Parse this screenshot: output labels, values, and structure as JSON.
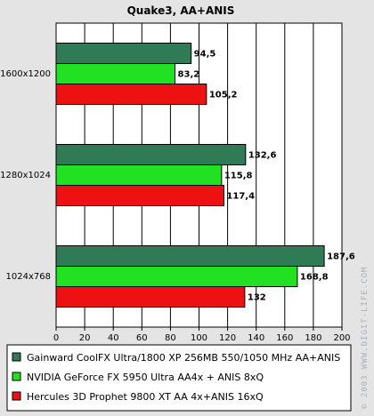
{
  "chart_data": {
    "type": "bar",
    "orientation": "horizontal",
    "title": "Quake3, AA+ANIS",
    "categories": [
      "1600x1200",
      "1280x1024",
      "1024x768"
    ],
    "series": [
      {
        "name": "Gainward CoolFX Ultra/1800 XP 256MB 550/1050 MHz AA+ANIS",
        "color": "#2f7b55",
        "values": [
          94.5,
          132.6,
          187.6
        ],
        "labels": [
          "94,5",
          "132,6",
          "187,6"
        ]
      },
      {
        "name": "NVIDIA GeForce FX 5950 Ultra AA4x + ANIS 8xQ",
        "color": "#22e022",
        "values": [
          83.2,
          115.8,
          168.8
        ],
        "labels": [
          "83,2",
          "115,8",
          "168,8"
        ]
      },
      {
        "name": "Hercules 3D Prophet 9800 XT AA 4x+ANIS 16xQ",
        "color": "#ee1111",
        "values": [
          105.2,
          117.4,
          132
        ],
        "labels": [
          "105,2",
          "117,4",
          "132"
        ]
      }
    ],
    "xlim": [
      0,
      200
    ],
    "xticks": [
      0,
      20,
      40,
      60,
      80,
      100,
      120,
      140,
      160,
      180,
      200
    ],
    "grid": true,
    "legend": "bottom"
  },
  "watermark": "© 2003 WWW.DIGIT-LIFE.COM"
}
